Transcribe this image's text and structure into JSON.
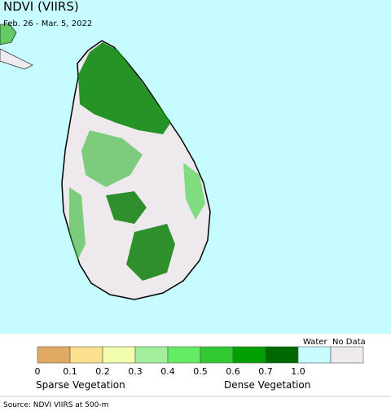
{
  "header": {
    "title": "NDVI (VIIRS)",
    "subtitle": "Feb. 26 - Mar. 5, 2022"
  },
  "legend": {
    "swatches": [
      "#e0aa64",
      "#fde08e",
      "#f2fdae",
      "#a2f09c",
      "#64ec64",
      "#32c832",
      "#00a000",
      "#006800",
      "#c6fcff",
      "#ede9ed"
    ],
    "ticks": [
      "0",
      "0.1",
      "0.2",
      "0.3",
      "0.4",
      "0.5",
      "0.6",
      "0.7",
      "1.0"
    ],
    "water_label": "Water",
    "nodata_label": "No Data",
    "sparse_label": "Sparse Vegetation",
    "dense_label": "Dense Vegetation"
  },
  "source": "Source: NDVI VIIRS at 500-m"
}
